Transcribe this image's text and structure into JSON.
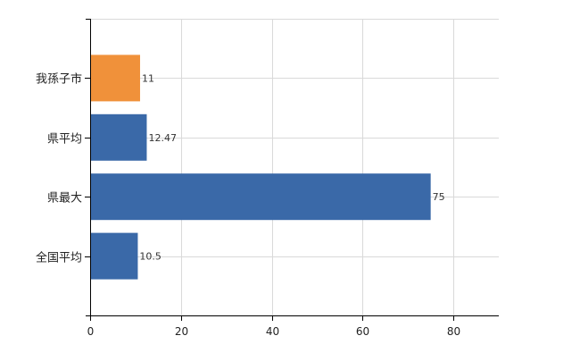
{
  "chart_data": {
    "type": "bar",
    "orientation": "horizontal",
    "categories": [
      "我孫子市",
      "県平均",
      "県最大",
      "全国平均"
    ],
    "values": [
      11,
      12.47,
      75,
      10.5
    ],
    "value_labels": [
      "11",
      "12.47",
      "75",
      "10.5"
    ],
    "highlight_index": 0,
    "colors": {
      "highlight": "#f0913a",
      "default": "#3a69a8"
    },
    "xlim": [
      0,
      90
    ],
    "x_ticks": [
      0,
      20,
      40,
      60,
      80
    ],
    "x_tick_labels": [
      "0",
      "20",
      "40",
      "60",
      "80"
    ],
    "grid": true,
    "title": "",
    "xlabel": "",
    "ylabel": ""
  }
}
